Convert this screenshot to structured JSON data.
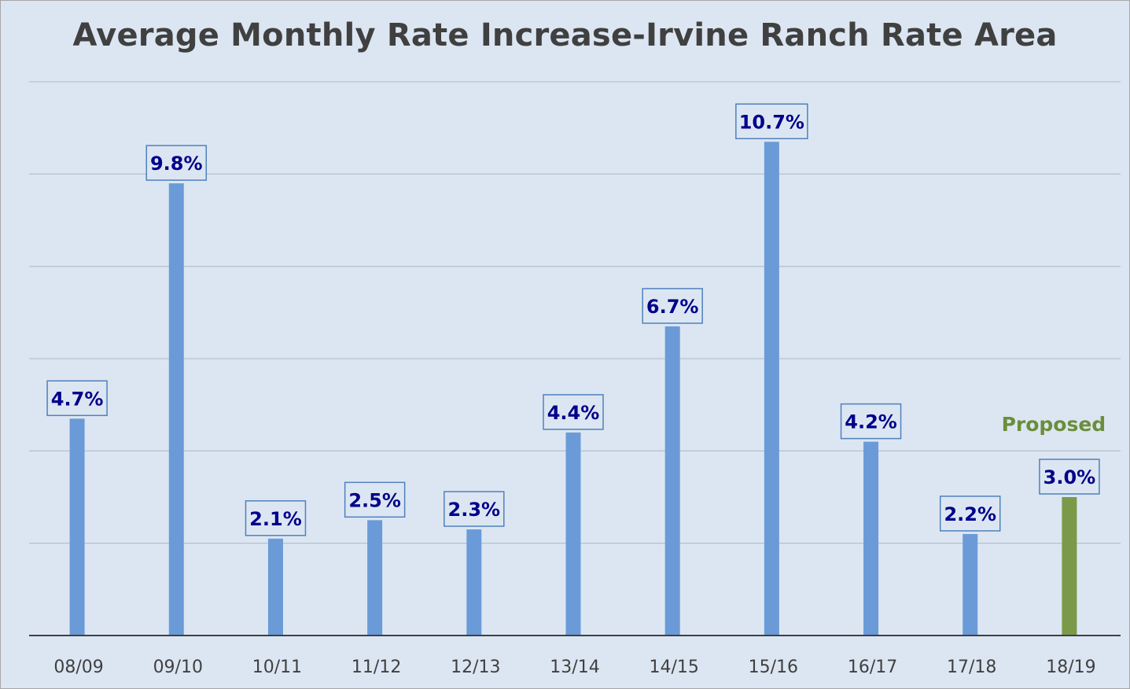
{
  "chart_data": {
    "type": "bar",
    "title": "Average Monthly Rate Increase-Irvine Ranch Rate Area",
    "xlabel": "",
    "ylabel": "",
    "ylim": [
      0,
      12
    ],
    "grid": true,
    "categories": [
      "08/09",
      "09/10",
      "10/11",
      "11/12",
      "12/13",
      "13/14",
      "14/15",
      "15/16",
      "16/17",
      "17/18",
      "18/19"
    ],
    "values": [
      4.7,
      9.8,
      2.1,
      2.5,
      2.3,
      4.4,
      6.7,
      10.7,
      4.2,
      2.2,
      3.0
    ],
    "data_labels": [
      "4.7%",
      "9.8%",
      "2.1%",
      "2.5%",
      "2.3%",
      "4.4%",
      "6.7%",
      "10.7%",
      "4.2%",
      "2.2%",
      "3.0%"
    ],
    "bar_colors": [
      "#6a9bd8",
      "#6a9bd8",
      "#6a9bd8",
      "#6a9bd8",
      "#6a9bd8",
      "#6a9bd8",
      "#6a9bd8",
      "#6a9bd8",
      "#6a9bd8",
      "#6a9bd8",
      "#7a9a4a"
    ],
    "annotation": {
      "text": "Proposed",
      "category": "18/19",
      "color": "#6b8e3a"
    }
  }
}
